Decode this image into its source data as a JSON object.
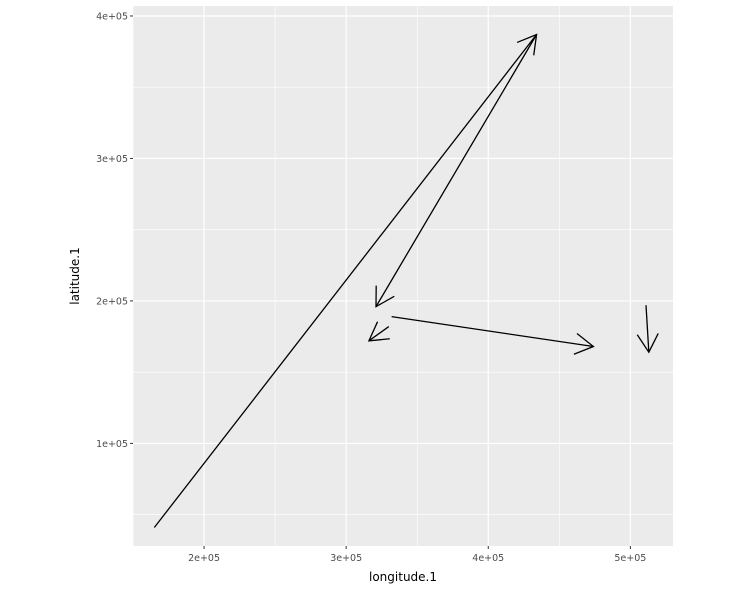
{
  "chart_data": {
    "type": "segment",
    "xlabel": "longitude.1",
    "ylabel": "latitude.1",
    "xlim": [
      150000,
      530000
    ],
    "ylim": [
      28000,
      407000
    ],
    "xticks": [
      200000,
      300000,
      400000,
      500000
    ],
    "xtick_labels": [
      "2e+05",
      "3e+05",
      "4e+05",
      "5e+05"
    ],
    "yticks": [
      100000,
      200000,
      300000,
      400000
    ],
    "ytick_labels": [
      "1e+05",
      "2e+05",
      "3e+05",
      "4e+05"
    ],
    "grid": true,
    "panel_background": "#ebebeb",
    "grid_color": "#ffffff",
    "arrow_color": "#000000",
    "arrows": [
      {
        "x": 165000,
        "y": 41000,
        "xend": 434000,
        "yend": 387000
      },
      {
        "x": 434000,
        "y": 387000,
        "xend": 321000,
        "yend": 196000
      },
      {
        "x": 332000,
        "y": 189000,
        "xend": 474000,
        "yend": 168000
      },
      {
        "x": 330000,
        "y": 182000,
        "xend": 316000,
        "yend": 172000
      },
      {
        "x": 511000,
        "y": 197000,
        "xend": 513000,
        "yend": 164000
      }
    ]
  }
}
